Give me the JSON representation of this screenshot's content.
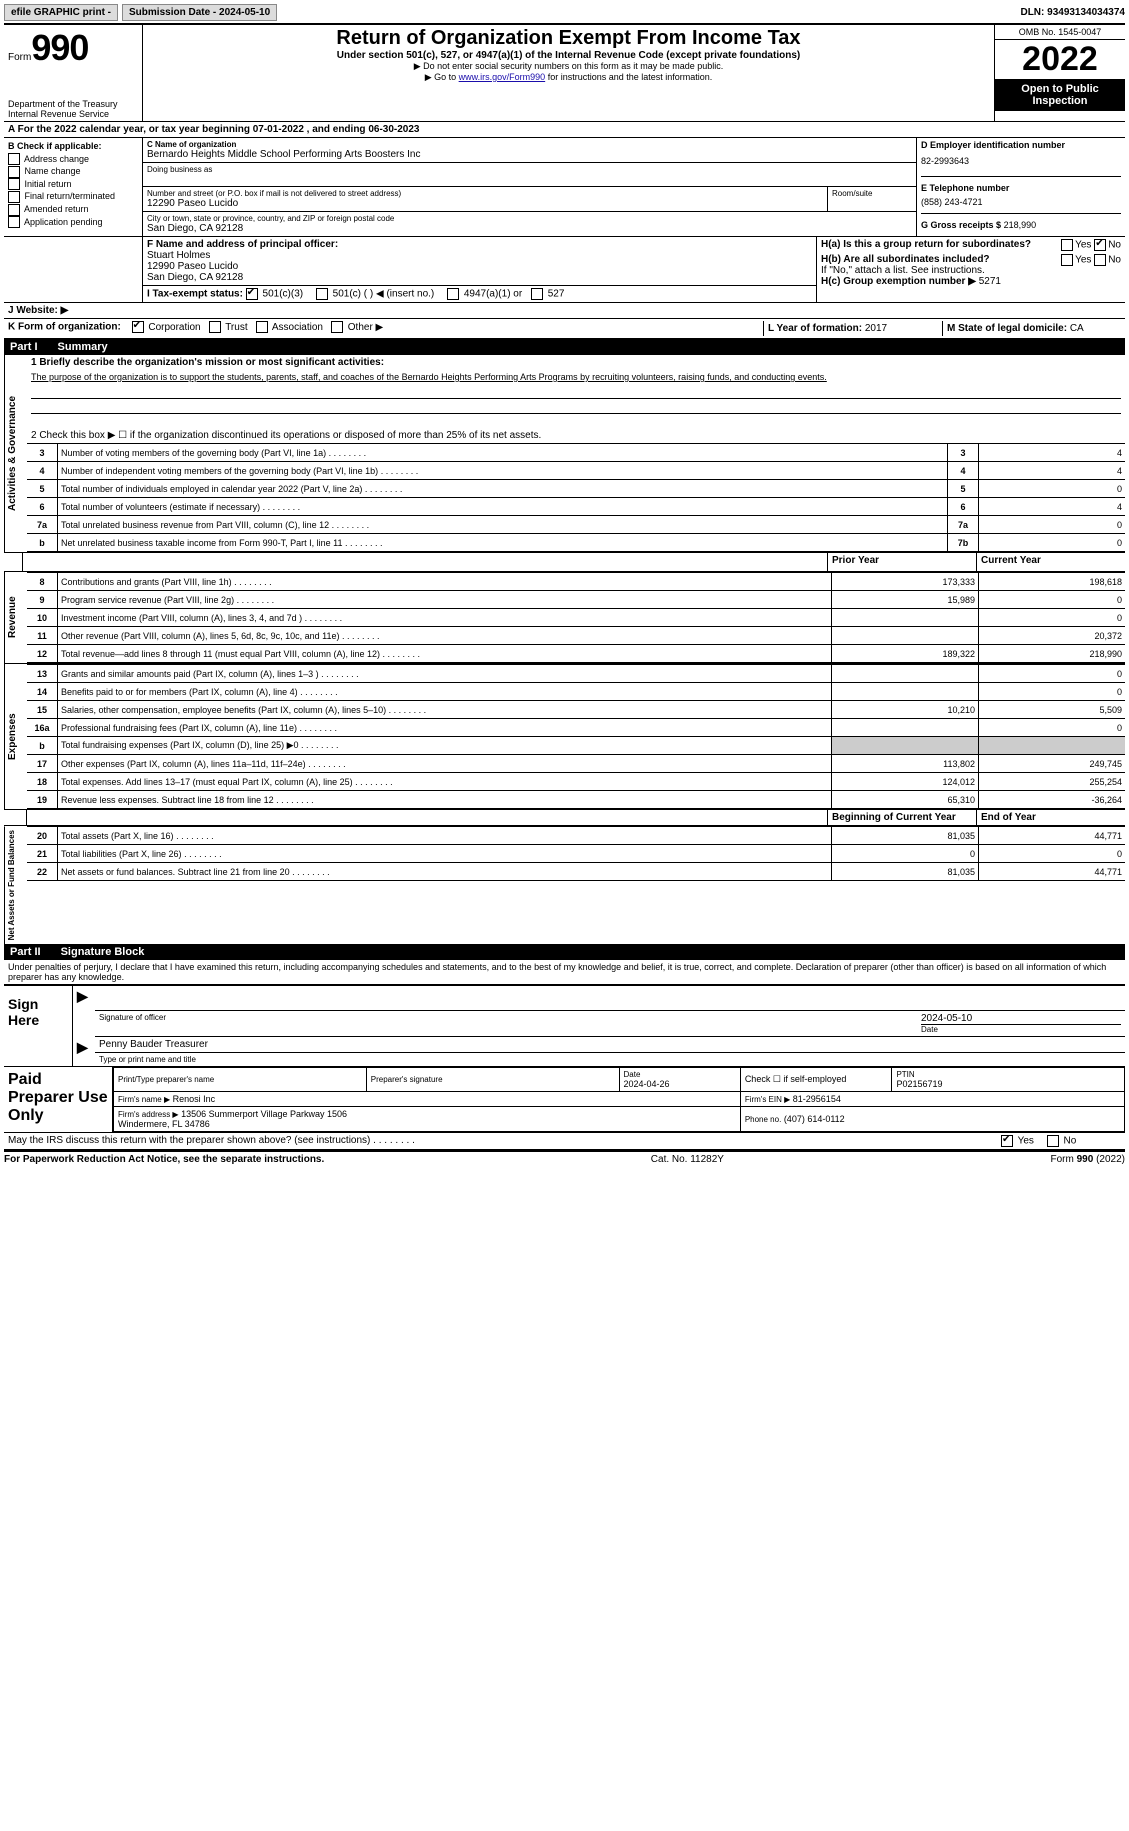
{
  "topbar": {
    "efile": "efile GRAPHIC print -",
    "submission": "Submission Date - 2024-05-10",
    "dln": "DLN: 93493134034374"
  },
  "header": {
    "form_word": "Form",
    "form_num": "990",
    "dept": "Department of the Treasury",
    "irs": "Internal Revenue Service",
    "title": "Return of Organization Exempt From Income Tax",
    "subtitle": "Under section 501(c), 527, or 4947(a)(1) of the Internal Revenue Code (except private foundations)",
    "note1": "▶ Do not enter social security numbers on this form as it may be made public.",
    "note2_pre": "▶ Go to ",
    "note2_link": "www.irs.gov/Form990",
    "note2_post": " for instructions and the latest information.",
    "omb": "OMB No. 1545-0047",
    "year": "2022",
    "open": "Open to Public Inspection"
  },
  "period": {
    "line": "A For the 2022 calendar year, or tax year beginning 07-01-2022   , and ending 06-30-2023"
  },
  "sectionB": {
    "label": "B Check if applicable:",
    "opts": [
      "Address change",
      "Name change",
      "Initial return",
      "Final return/terminated",
      "Amended return",
      "Application pending"
    ],
    "c_name_label": "C Name of organization",
    "c_name": "Bernardo Heights Middle School Performing Arts Boosters Inc",
    "dba_label": "Doing business as",
    "addr_label": "Number and street (or P.O. box if mail is not delivered to street address)",
    "addr": "12290 Paseo Lucido",
    "room_label": "Room/suite",
    "city_label": "City or town, state or province, country, and ZIP or foreign postal code",
    "city": "San Diego, CA  92128",
    "d_label": "D Employer identification number",
    "d_val": "82-2993643",
    "e_label": "E Telephone number",
    "e_val": "(858) 243-4721",
    "g_label": "G Gross receipts $",
    "g_val": "218,990",
    "f_label": "F  Name and address of principal officer:",
    "f_name": "Stuart Holmes",
    "f_addr1": "12990 Paseo Lucido",
    "f_addr2": "San Diego, CA  92128",
    "ha_label": "H(a)  Is this a group return for subordinates?",
    "hb_label": "H(b)  Are all subordinates included?",
    "hb_note": "If \"No,\" attach a list. See instructions.",
    "hc_label": "H(c)  Group exemption number ▶",
    "hc_val": "5271",
    "i_label": "I  Tax-exempt status:",
    "i_501c3": "501(c)(3)",
    "i_501c": "501(c) (   ) ◀ (insert no.)",
    "i_4947": "4947(a)(1) or",
    "i_527": "527",
    "j_label": "J  Website: ▶",
    "k_label": "K Form of organization:",
    "k_opts": [
      "Corporation",
      "Trust",
      "Association",
      "Other ▶"
    ],
    "l_label": "L Year of formation:",
    "l_val": "2017",
    "m_label": "M State of legal domicile:",
    "m_val": "CA",
    "yes": "Yes",
    "no": "No"
  },
  "part1": {
    "header_num": "Part I",
    "header_title": "Summary",
    "q1": "1  Briefly describe the organization's mission or most significant activities:",
    "mission": "The purpose of the organization is to support the students, parents, staff, and coaches of the Bernardo Heights Performing Arts Programs by recruiting volunteers, raising funds, and conducting events.",
    "q2": "2   Check this box ▶ ☐  if the organization discontinued its operations or disposed of more than 25% of its net assets.",
    "vert_ag": "Activities & Governance",
    "vert_rev": "Revenue",
    "vert_exp": "Expenses",
    "vert_na": "Net Assets or Fund Balances",
    "rows_ag": [
      {
        "n": "3",
        "d": "Number of voting members of the governing body (Part VI, line 1a)",
        "box": "3",
        "v": "4"
      },
      {
        "n": "4",
        "d": "Number of independent voting members of the governing body (Part VI, line 1b)",
        "box": "4",
        "v": "4"
      },
      {
        "n": "5",
        "d": "Total number of individuals employed in calendar year 2022 (Part V, line 2a)",
        "box": "5",
        "v": "0"
      },
      {
        "n": "6",
        "d": "Total number of volunteers (estimate if necessary)",
        "box": "6",
        "v": "4"
      },
      {
        "n": "7a",
        "d": "Total unrelated business revenue from Part VIII, column (C), line 12",
        "box": "7a",
        "v": "0"
      },
      {
        "n": "b",
        "d": "Net unrelated business taxable income from Form 990-T, Part I, line 11",
        "box": "7b",
        "v": "0"
      }
    ],
    "col_prior": "Prior Year",
    "col_current": "Current Year",
    "col_beg": "Beginning of Current Year",
    "col_end": "End of Year",
    "rows_rev": [
      {
        "n": "8",
        "d": "Contributions and grants (Part VIII, line 1h)",
        "p": "173,333",
        "c": "198,618"
      },
      {
        "n": "9",
        "d": "Program service revenue (Part VIII, line 2g)",
        "p": "15,989",
        "c": "0"
      },
      {
        "n": "10",
        "d": "Investment income (Part VIII, column (A), lines 3, 4, and 7d )",
        "p": "",
        "c": "0"
      },
      {
        "n": "11",
        "d": "Other revenue (Part VIII, column (A), lines 5, 6d, 8c, 9c, 10c, and 11e)",
        "p": "",
        "c": "20,372"
      },
      {
        "n": "12",
        "d": "Total revenue—add lines 8 through 11 (must equal Part VIII, column (A), line 12)",
        "p": "189,322",
        "c": "218,990"
      }
    ],
    "rows_exp": [
      {
        "n": "13",
        "d": "Grants and similar amounts paid (Part IX, column (A), lines 1–3 )",
        "p": "",
        "c": "0"
      },
      {
        "n": "14",
        "d": "Benefits paid to or for members (Part IX, column (A), line 4)",
        "p": "",
        "c": "0"
      },
      {
        "n": "15",
        "d": "Salaries, other compensation, employee benefits (Part IX, column (A), lines 5–10)",
        "p": "10,210",
        "c": "5,509"
      },
      {
        "n": "16a",
        "d": "Professional fundraising fees (Part IX, column (A), line 11e)",
        "p": "",
        "c": "0"
      },
      {
        "n": "b",
        "d": "Total fundraising expenses (Part IX, column (D), line 25) ▶0",
        "p": "SHADE",
        "c": "SHADE"
      },
      {
        "n": "17",
        "d": "Other expenses (Part IX, column (A), lines 11a–11d, 11f–24e)",
        "p": "113,802",
        "c": "249,745"
      },
      {
        "n": "18",
        "d": "Total expenses. Add lines 13–17 (must equal Part IX, column (A), line 25)",
        "p": "124,012",
        "c": "255,254"
      },
      {
        "n": "19",
        "d": "Revenue less expenses. Subtract line 18 from line 12",
        "p": "65,310",
        "c": "-36,264"
      }
    ],
    "rows_na": [
      {
        "n": "20",
        "d": "Total assets (Part X, line 16)",
        "p": "81,035",
        "c": "44,771"
      },
      {
        "n": "21",
        "d": "Total liabilities (Part X, line 26)",
        "p": "0",
        "c": "0"
      },
      {
        "n": "22",
        "d": "Net assets or fund balances. Subtract line 21 from line 20",
        "p": "81,035",
        "c": "44,771"
      }
    ]
  },
  "part2": {
    "header_num": "Part II",
    "header_title": "Signature Block",
    "decl": "Under penalties of perjury, I declare that I have examined this return, including accompanying schedules and statements, and to the best of my knowledge and belief, it is true, correct, and complete. Declaration of preparer (other than officer) is based on all information of which preparer has any knowledge.",
    "sign_here": "Sign Here",
    "sig_officer": "Signature of officer",
    "sig_date": "Date",
    "sig_date_val": "2024-05-10",
    "sig_name": "Penny Bauder  Treasurer",
    "sig_name_label": "Type or print name and title",
    "paid_prep": "Paid Preparer Use Only",
    "pt_name_label": "Print/Type preparer's name",
    "pt_sig_label": "Preparer's signature",
    "pt_date_label": "Date",
    "pt_date": "2024-04-26",
    "pt_check_label": "Check ☐ if self-employed",
    "ptin_label": "PTIN",
    "ptin": "P02156719",
    "firm_name_label": "Firm's name    ▶",
    "firm_name": "Renosi Inc",
    "firm_ein_label": "Firm's EIN ▶",
    "firm_ein": "81-2956154",
    "firm_addr_label": "Firm's address ▶",
    "firm_addr": "13506 Summerport Village Parkway 1506\nWindermere, FL  34786",
    "phone_label": "Phone no.",
    "phone": "(407) 614-0112",
    "discuss": "May the IRS discuss this return with the preparer shown above? (see instructions)"
  },
  "footer": {
    "pra": "For Paperwork Reduction Act Notice, see the separate instructions.",
    "cat": "Cat. No. 11282Y",
    "form": "Form 990 (2022)"
  }
}
